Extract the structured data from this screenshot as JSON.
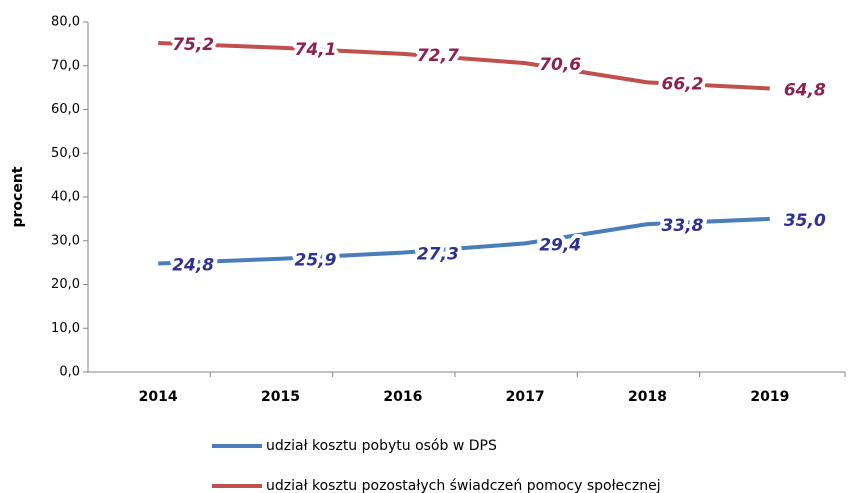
{
  "chart_data": {
    "type": "line",
    "y_label": "procent",
    "categories": [
      "2014",
      "2015",
      "2016",
      "2017",
      "2018",
      "2019"
    ],
    "series": [
      {
        "name": "udział kosztu pobytu osób w DPS",
        "color": "#4a7ebb",
        "label_color": "#2e3192",
        "values": [
          24.8,
          25.9,
          27.3,
          29.4,
          33.8,
          35.0
        ],
        "value_labels": [
          "24,8",
          "25,9",
          "27,3",
          "29,4",
          "33,8",
          "35,0"
        ]
      },
      {
        "name": "udział kosztu pozostałych świadczeń pomocy społecznej",
        "color": "#c0504d",
        "label_color": "#8b2252",
        "values": [
          75.2,
          74.1,
          72.7,
          70.6,
          66.2,
          64.8
        ],
        "value_labels": [
          "75,2",
          "74,1",
          "72,7",
          "70,6",
          "66,2",
          "64,8"
        ]
      }
    ],
    "ylim": [
      0,
      80
    ],
    "yticks": [
      {
        "value": 0,
        "label": "0,0"
      },
      {
        "value": 10,
        "label": "10,0"
      },
      {
        "value": 20,
        "label": "20,0"
      },
      {
        "value": 30,
        "label": "30,0"
      },
      {
        "value": 40,
        "label": "40,0"
      },
      {
        "value": 50,
        "label": "50,0"
      },
      {
        "value": 60,
        "label": "60,0"
      },
      {
        "value": 70,
        "label": "70,0"
      },
      {
        "value": 80,
        "label": "80,0"
      }
    ],
    "grid": false,
    "legend": "bottom"
  }
}
